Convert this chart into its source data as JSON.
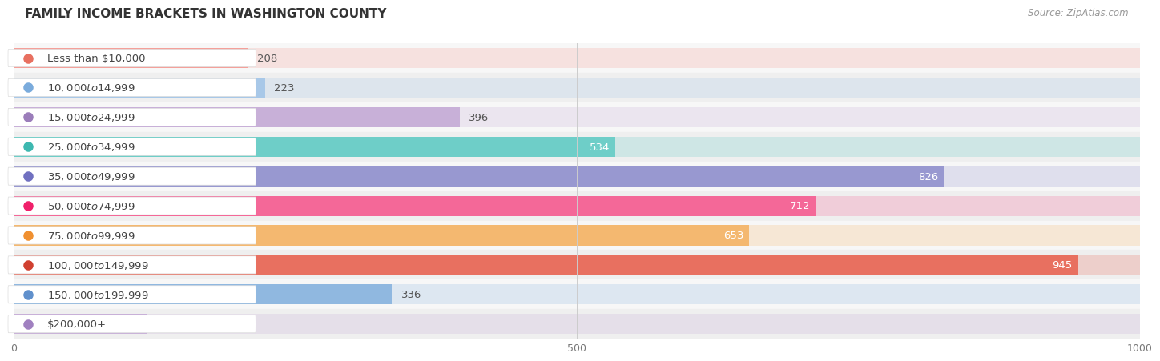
{
  "title": "FAMILY INCOME BRACKETS IN WASHINGTON COUNTY",
  "source": "Source: ZipAtlas.com",
  "categories": [
    "Less than $10,000",
    "$10,000 to $14,999",
    "$15,000 to $24,999",
    "$25,000 to $34,999",
    "$35,000 to $49,999",
    "$50,000 to $74,999",
    "$75,000 to $99,999",
    "$100,000 to $149,999",
    "$150,000 to $199,999",
    "$200,000+"
  ],
  "values": [
    208,
    223,
    396,
    534,
    826,
    712,
    653,
    945,
    336,
    119
  ],
  "bar_colors": [
    "#f4a09a",
    "#a8c8e8",
    "#c8b0d8",
    "#6ecec8",
    "#9898d0",
    "#f46898",
    "#f4b870",
    "#e87060",
    "#90b8e0",
    "#c8b0d8"
  ],
  "dot_colors": [
    "#e87060",
    "#7aabdc",
    "#9b7dba",
    "#3db8b0",
    "#7070c0",
    "#f0206a",
    "#f09030",
    "#d04030",
    "#6090cc",
    "#a080c0"
  ],
  "xlim": [
    0,
    1000
  ],
  "xticks": [
    0,
    500,
    1000
  ],
  "background_color": "#ffffff",
  "row_bg_colors": [
    "#f7f7f7",
    "#efefef"
  ],
  "label_white_bg": "#ffffff",
  "label_inside_threshold": 500,
  "bar_height": 0.68,
  "label_fontsize": 9.5,
  "value_fontsize": 9.5,
  "title_fontsize": 11,
  "source_fontsize": 8.5
}
